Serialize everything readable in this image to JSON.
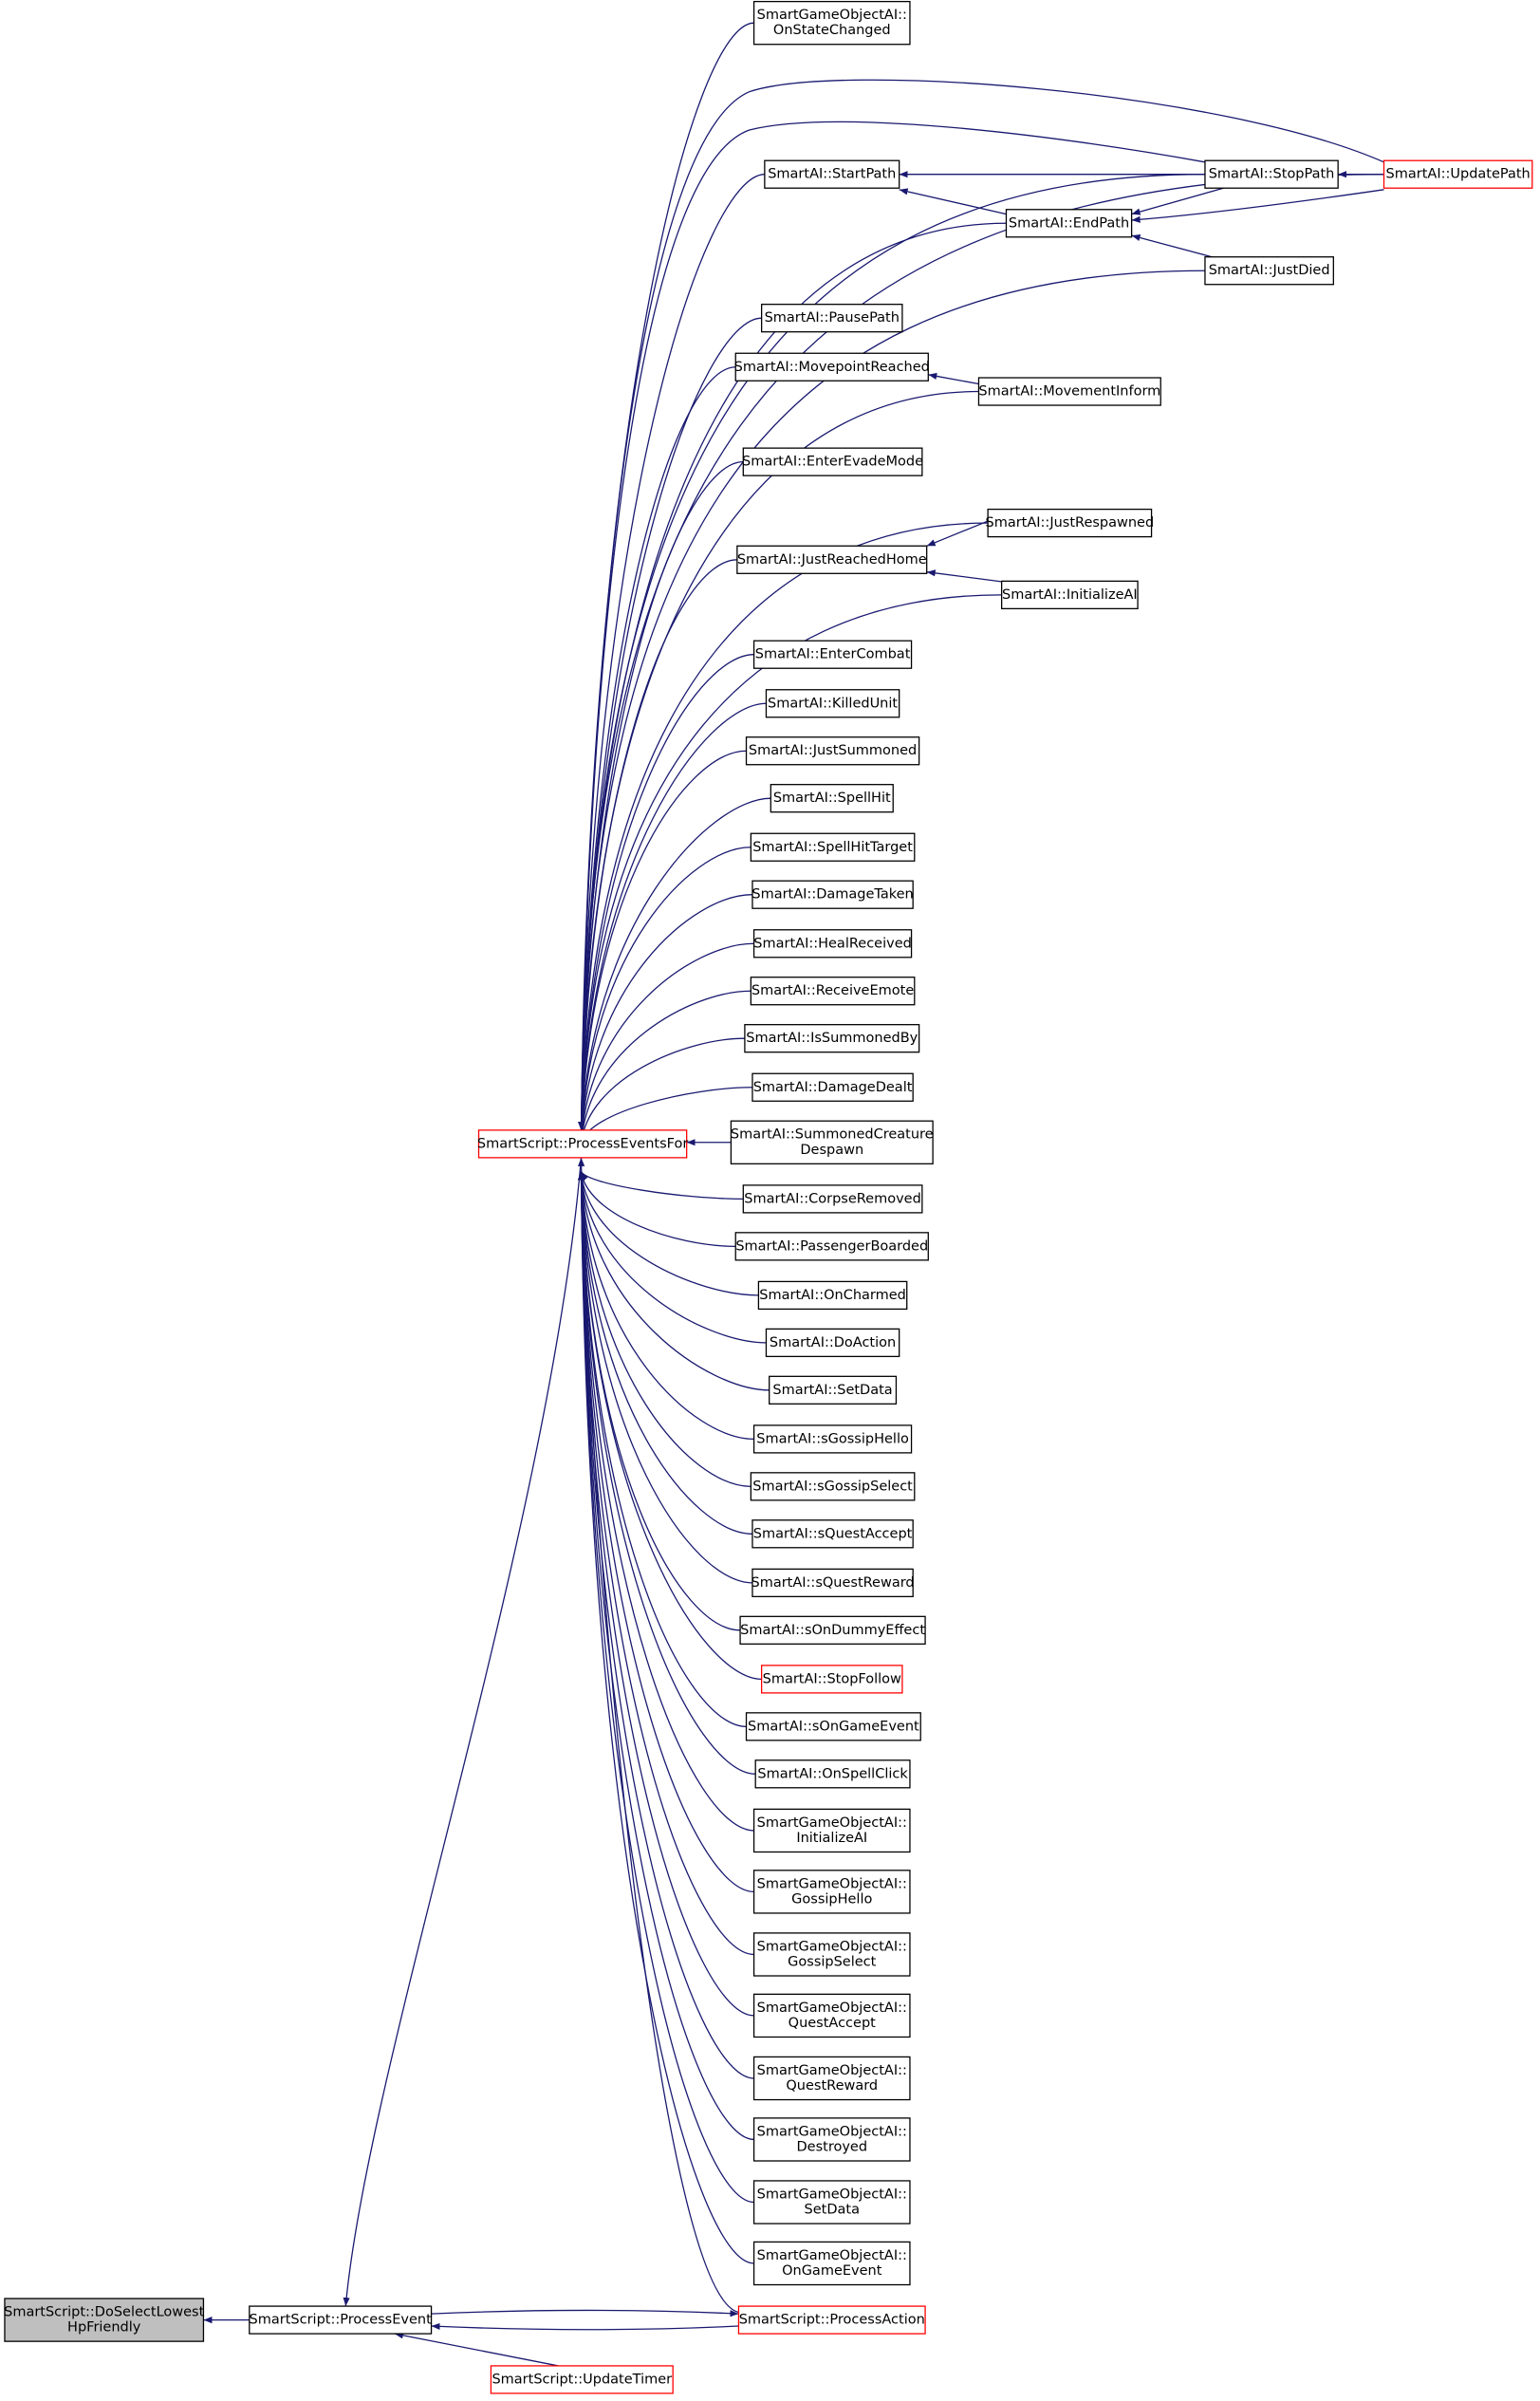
{
  "nodes": [
    {
      "label": [
        "SmartScript::DoSelectLowest",
        "HpFriendly"
      ]
    },
    {
      "label": [
        "SmartScript::ProcessEvent"
      ]
    },
    {
      "label": [
        "SmartScript::UpdateTimer"
      ]
    },
    {
      "label": [
        "SmartScript::ProcessAction"
      ]
    },
    {
      "label": [
        "SmartScript::ProcessEventsFor"
      ]
    },
    {
      "label": [
        "SmartGameObjectAI::",
        "OnStateChanged"
      ]
    },
    {
      "label": [
        "SmartAI::StartPath"
      ]
    },
    {
      "label": [
        "SmartAI::StopPath"
      ]
    },
    {
      "label": [
        "SmartAI::UpdatePath"
      ]
    },
    {
      "label": [
        "SmartAI::EndPath"
      ]
    },
    {
      "label": [
        "SmartAI::JustDied"
      ]
    },
    {
      "label": [
        "SmartAI::PausePath"
      ]
    },
    {
      "label": [
        "SmartAI::MovepointReached"
      ]
    },
    {
      "label": [
        "SmartAI::MovementInform"
      ]
    },
    {
      "label": [
        "SmartAI::EnterEvadeMode"
      ]
    },
    {
      "label": [
        "SmartAI::JustRespawned"
      ]
    },
    {
      "label": [
        "SmartAI::JustReachedHome"
      ]
    },
    {
      "label": [
        "SmartAI::InitializeAI"
      ]
    },
    {
      "label": [
        "SmartAI::EnterCombat"
      ]
    },
    {
      "label": [
        "SmartAI::KilledUnit"
      ]
    },
    {
      "label": [
        "SmartAI::JustSummoned"
      ]
    },
    {
      "label": [
        "SmartAI::SpellHit"
      ]
    },
    {
      "label": [
        "SmartAI::SpellHitTarget"
      ]
    },
    {
      "label": [
        "SmartAI::DamageTaken"
      ]
    },
    {
      "label": [
        "SmartAI::HealReceived"
      ]
    },
    {
      "label": [
        "SmartAI::ReceiveEmote"
      ]
    },
    {
      "label": [
        "SmartAI::IsSummonedBy"
      ]
    },
    {
      "label": [
        "SmartAI::DamageDealt"
      ]
    },
    {
      "label": [
        "SmartAI::SummonedCreature",
        "Despawn"
      ]
    },
    {
      "label": [
        "SmartAI::CorpseRemoved"
      ]
    },
    {
      "label": [
        "SmartAI::PassengerBoarded"
      ]
    },
    {
      "label": [
        "SmartAI::OnCharmed"
      ]
    },
    {
      "label": [
        "SmartAI::DoAction"
      ]
    },
    {
      "label": [
        "SmartAI::SetData"
      ]
    },
    {
      "label": [
        "SmartAI::sGossipHello"
      ]
    },
    {
      "label": [
        "SmartAI::sGossipSelect"
      ]
    },
    {
      "label": [
        "SmartAI::sQuestAccept"
      ]
    },
    {
      "label": [
        "SmartAI::sQuestReward"
      ]
    },
    {
      "label": [
        "SmartAI::sOnDummyEffect"
      ]
    },
    {
      "label": [
        "SmartAI::StopFollow"
      ]
    },
    {
      "label": [
        "SmartAI::sOnGameEvent"
      ]
    },
    {
      "label": [
        "SmartAI::OnSpellClick"
      ]
    },
    {
      "label": [
        "SmartGameObjectAI::",
        "InitializeAI"
      ]
    },
    {
      "label": [
        "SmartGameObjectAI::",
        "GossipHello"
      ]
    },
    {
      "label": [
        "SmartGameObjectAI::",
        "GossipSelect"
      ]
    },
    {
      "label": [
        "SmartGameObjectAI::",
        "QuestAccept"
      ]
    },
    {
      "label": [
        "SmartGameObjectAI::",
        "QuestReward"
      ]
    },
    {
      "label": [
        "SmartGameObjectAI::",
        "Destroyed"
      ]
    },
    {
      "label": [
        "SmartGameObjectAI::",
        "SetData"
      ]
    },
    {
      "label": [
        "SmartGameObjectAI::",
        "OnGameEvent"
      ]
    }
  ]
}
